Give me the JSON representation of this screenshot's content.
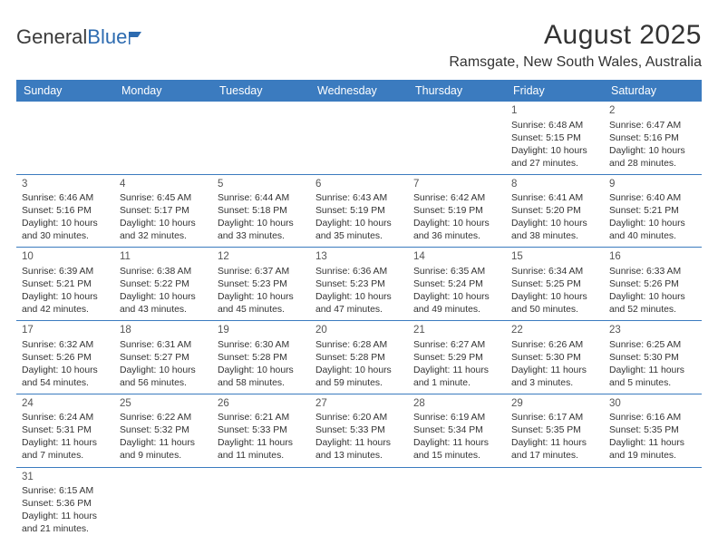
{
  "logo": {
    "part1": "General",
    "part2": "Blue"
  },
  "title": "August 2025",
  "location": "Ramsgate, New South Wales, Australia",
  "colors": {
    "header_bg": "#3b7bbf",
    "header_text": "#ffffff",
    "rule": "#3b7bbf",
    "body_text": "#333333",
    "daynum": "#555555",
    "logo_dark": "#3b3b3b",
    "logo_blue": "#2d6bb0",
    "background": "#ffffff"
  },
  "day_names": [
    "Sunday",
    "Monday",
    "Tuesday",
    "Wednesday",
    "Thursday",
    "Friday",
    "Saturday"
  ],
  "weeks": [
    [
      null,
      null,
      null,
      null,
      null,
      {
        "n": "1",
        "sr": "Sunrise: 6:48 AM",
        "ss": "Sunset: 5:15 PM",
        "dl1": "Daylight: 10 hours",
        "dl2": "and 27 minutes."
      },
      {
        "n": "2",
        "sr": "Sunrise: 6:47 AM",
        "ss": "Sunset: 5:16 PM",
        "dl1": "Daylight: 10 hours",
        "dl2": "and 28 minutes."
      }
    ],
    [
      {
        "n": "3",
        "sr": "Sunrise: 6:46 AM",
        "ss": "Sunset: 5:16 PM",
        "dl1": "Daylight: 10 hours",
        "dl2": "and 30 minutes."
      },
      {
        "n": "4",
        "sr": "Sunrise: 6:45 AM",
        "ss": "Sunset: 5:17 PM",
        "dl1": "Daylight: 10 hours",
        "dl2": "and 32 minutes."
      },
      {
        "n": "5",
        "sr": "Sunrise: 6:44 AM",
        "ss": "Sunset: 5:18 PM",
        "dl1": "Daylight: 10 hours",
        "dl2": "and 33 minutes."
      },
      {
        "n": "6",
        "sr": "Sunrise: 6:43 AM",
        "ss": "Sunset: 5:19 PM",
        "dl1": "Daylight: 10 hours",
        "dl2": "and 35 minutes."
      },
      {
        "n": "7",
        "sr": "Sunrise: 6:42 AM",
        "ss": "Sunset: 5:19 PM",
        "dl1": "Daylight: 10 hours",
        "dl2": "and 36 minutes."
      },
      {
        "n": "8",
        "sr": "Sunrise: 6:41 AM",
        "ss": "Sunset: 5:20 PM",
        "dl1": "Daylight: 10 hours",
        "dl2": "and 38 minutes."
      },
      {
        "n": "9",
        "sr": "Sunrise: 6:40 AM",
        "ss": "Sunset: 5:21 PM",
        "dl1": "Daylight: 10 hours",
        "dl2": "and 40 minutes."
      }
    ],
    [
      {
        "n": "10",
        "sr": "Sunrise: 6:39 AM",
        "ss": "Sunset: 5:21 PM",
        "dl1": "Daylight: 10 hours",
        "dl2": "and 42 minutes."
      },
      {
        "n": "11",
        "sr": "Sunrise: 6:38 AM",
        "ss": "Sunset: 5:22 PM",
        "dl1": "Daylight: 10 hours",
        "dl2": "and 43 minutes."
      },
      {
        "n": "12",
        "sr": "Sunrise: 6:37 AM",
        "ss": "Sunset: 5:23 PM",
        "dl1": "Daylight: 10 hours",
        "dl2": "and 45 minutes."
      },
      {
        "n": "13",
        "sr": "Sunrise: 6:36 AM",
        "ss": "Sunset: 5:23 PM",
        "dl1": "Daylight: 10 hours",
        "dl2": "and 47 minutes."
      },
      {
        "n": "14",
        "sr": "Sunrise: 6:35 AM",
        "ss": "Sunset: 5:24 PM",
        "dl1": "Daylight: 10 hours",
        "dl2": "and 49 minutes."
      },
      {
        "n": "15",
        "sr": "Sunrise: 6:34 AM",
        "ss": "Sunset: 5:25 PM",
        "dl1": "Daylight: 10 hours",
        "dl2": "and 50 minutes."
      },
      {
        "n": "16",
        "sr": "Sunrise: 6:33 AM",
        "ss": "Sunset: 5:26 PM",
        "dl1": "Daylight: 10 hours",
        "dl2": "and 52 minutes."
      }
    ],
    [
      {
        "n": "17",
        "sr": "Sunrise: 6:32 AM",
        "ss": "Sunset: 5:26 PM",
        "dl1": "Daylight: 10 hours",
        "dl2": "and 54 minutes."
      },
      {
        "n": "18",
        "sr": "Sunrise: 6:31 AM",
        "ss": "Sunset: 5:27 PM",
        "dl1": "Daylight: 10 hours",
        "dl2": "and 56 minutes."
      },
      {
        "n": "19",
        "sr": "Sunrise: 6:30 AM",
        "ss": "Sunset: 5:28 PM",
        "dl1": "Daylight: 10 hours",
        "dl2": "and 58 minutes."
      },
      {
        "n": "20",
        "sr": "Sunrise: 6:28 AM",
        "ss": "Sunset: 5:28 PM",
        "dl1": "Daylight: 10 hours",
        "dl2": "and 59 minutes."
      },
      {
        "n": "21",
        "sr": "Sunrise: 6:27 AM",
        "ss": "Sunset: 5:29 PM",
        "dl1": "Daylight: 11 hours",
        "dl2": "and 1 minute."
      },
      {
        "n": "22",
        "sr": "Sunrise: 6:26 AM",
        "ss": "Sunset: 5:30 PM",
        "dl1": "Daylight: 11 hours",
        "dl2": "and 3 minutes."
      },
      {
        "n": "23",
        "sr": "Sunrise: 6:25 AM",
        "ss": "Sunset: 5:30 PM",
        "dl1": "Daylight: 11 hours",
        "dl2": "and 5 minutes."
      }
    ],
    [
      {
        "n": "24",
        "sr": "Sunrise: 6:24 AM",
        "ss": "Sunset: 5:31 PM",
        "dl1": "Daylight: 11 hours",
        "dl2": "and 7 minutes."
      },
      {
        "n": "25",
        "sr": "Sunrise: 6:22 AM",
        "ss": "Sunset: 5:32 PM",
        "dl1": "Daylight: 11 hours",
        "dl2": "and 9 minutes."
      },
      {
        "n": "26",
        "sr": "Sunrise: 6:21 AM",
        "ss": "Sunset: 5:33 PM",
        "dl1": "Daylight: 11 hours",
        "dl2": "and 11 minutes."
      },
      {
        "n": "27",
        "sr": "Sunrise: 6:20 AM",
        "ss": "Sunset: 5:33 PM",
        "dl1": "Daylight: 11 hours",
        "dl2": "and 13 minutes."
      },
      {
        "n": "28",
        "sr": "Sunrise: 6:19 AM",
        "ss": "Sunset: 5:34 PM",
        "dl1": "Daylight: 11 hours",
        "dl2": "and 15 minutes."
      },
      {
        "n": "29",
        "sr": "Sunrise: 6:17 AM",
        "ss": "Sunset: 5:35 PM",
        "dl1": "Daylight: 11 hours",
        "dl2": "and 17 minutes."
      },
      {
        "n": "30",
        "sr": "Sunrise: 6:16 AM",
        "ss": "Sunset: 5:35 PM",
        "dl1": "Daylight: 11 hours",
        "dl2": "and 19 minutes."
      }
    ],
    [
      {
        "n": "31",
        "sr": "Sunrise: 6:15 AM",
        "ss": "Sunset: 5:36 PM",
        "dl1": "Daylight: 11 hours",
        "dl2": "and 21 minutes."
      },
      null,
      null,
      null,
      null,
      null,
      null
    ]
  ]
}
